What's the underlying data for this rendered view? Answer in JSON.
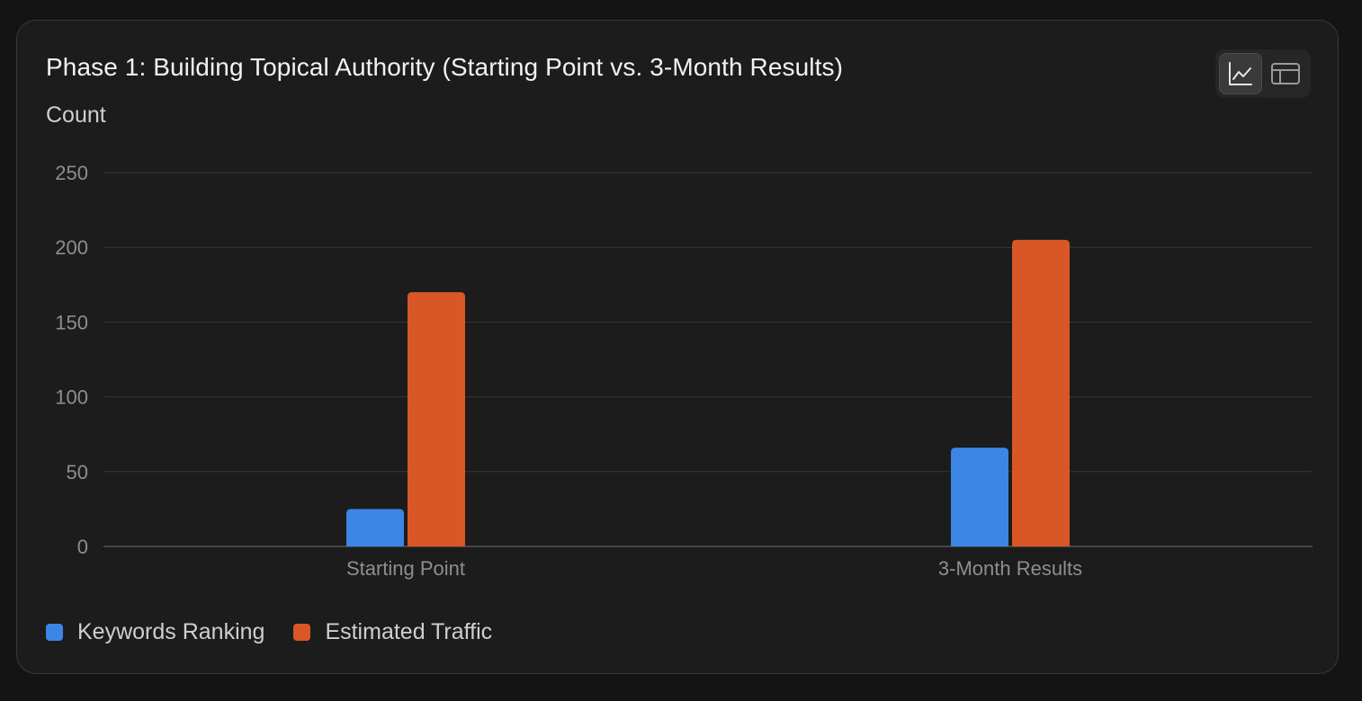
{
  "chart_data": {
    "type": "bar",
    "title": "Phase 1: Building Topical Authority (Starting Point vs. 3-Month Results)",
    "ylabel": "Count",
    "xlabel": "",
    "categories": [
      "Starting Point",
      "3-Month Results"
    ],
    "series": [
      {
        "name": "Keywords Ranking",
        "values": [
          25,
          66
        ],
        "color": "#3b86e4"
      },
      {
        "name": "Estimated Traffic",
        "values": [
          170,
          205
        ],
        "color": "#d95627"
      }
    ],
    "ylim": [
      0,
      250
    ],
    "yticks": [
      0,
      50,
      100,
      150,
      200,
      250
    ],
    "grid": true,
    "legend_position": "bottom-left"
  },
  "controls": {
    "chart_view_icon": "line-chart-icon",
    "table_view_icon": "table-icon",
    "active_view": "chart"
  },
  "colors": {
    "background": "#1c1c1c",
    "grid": "#363636",
    "baseline": "#555555"
  }
}
